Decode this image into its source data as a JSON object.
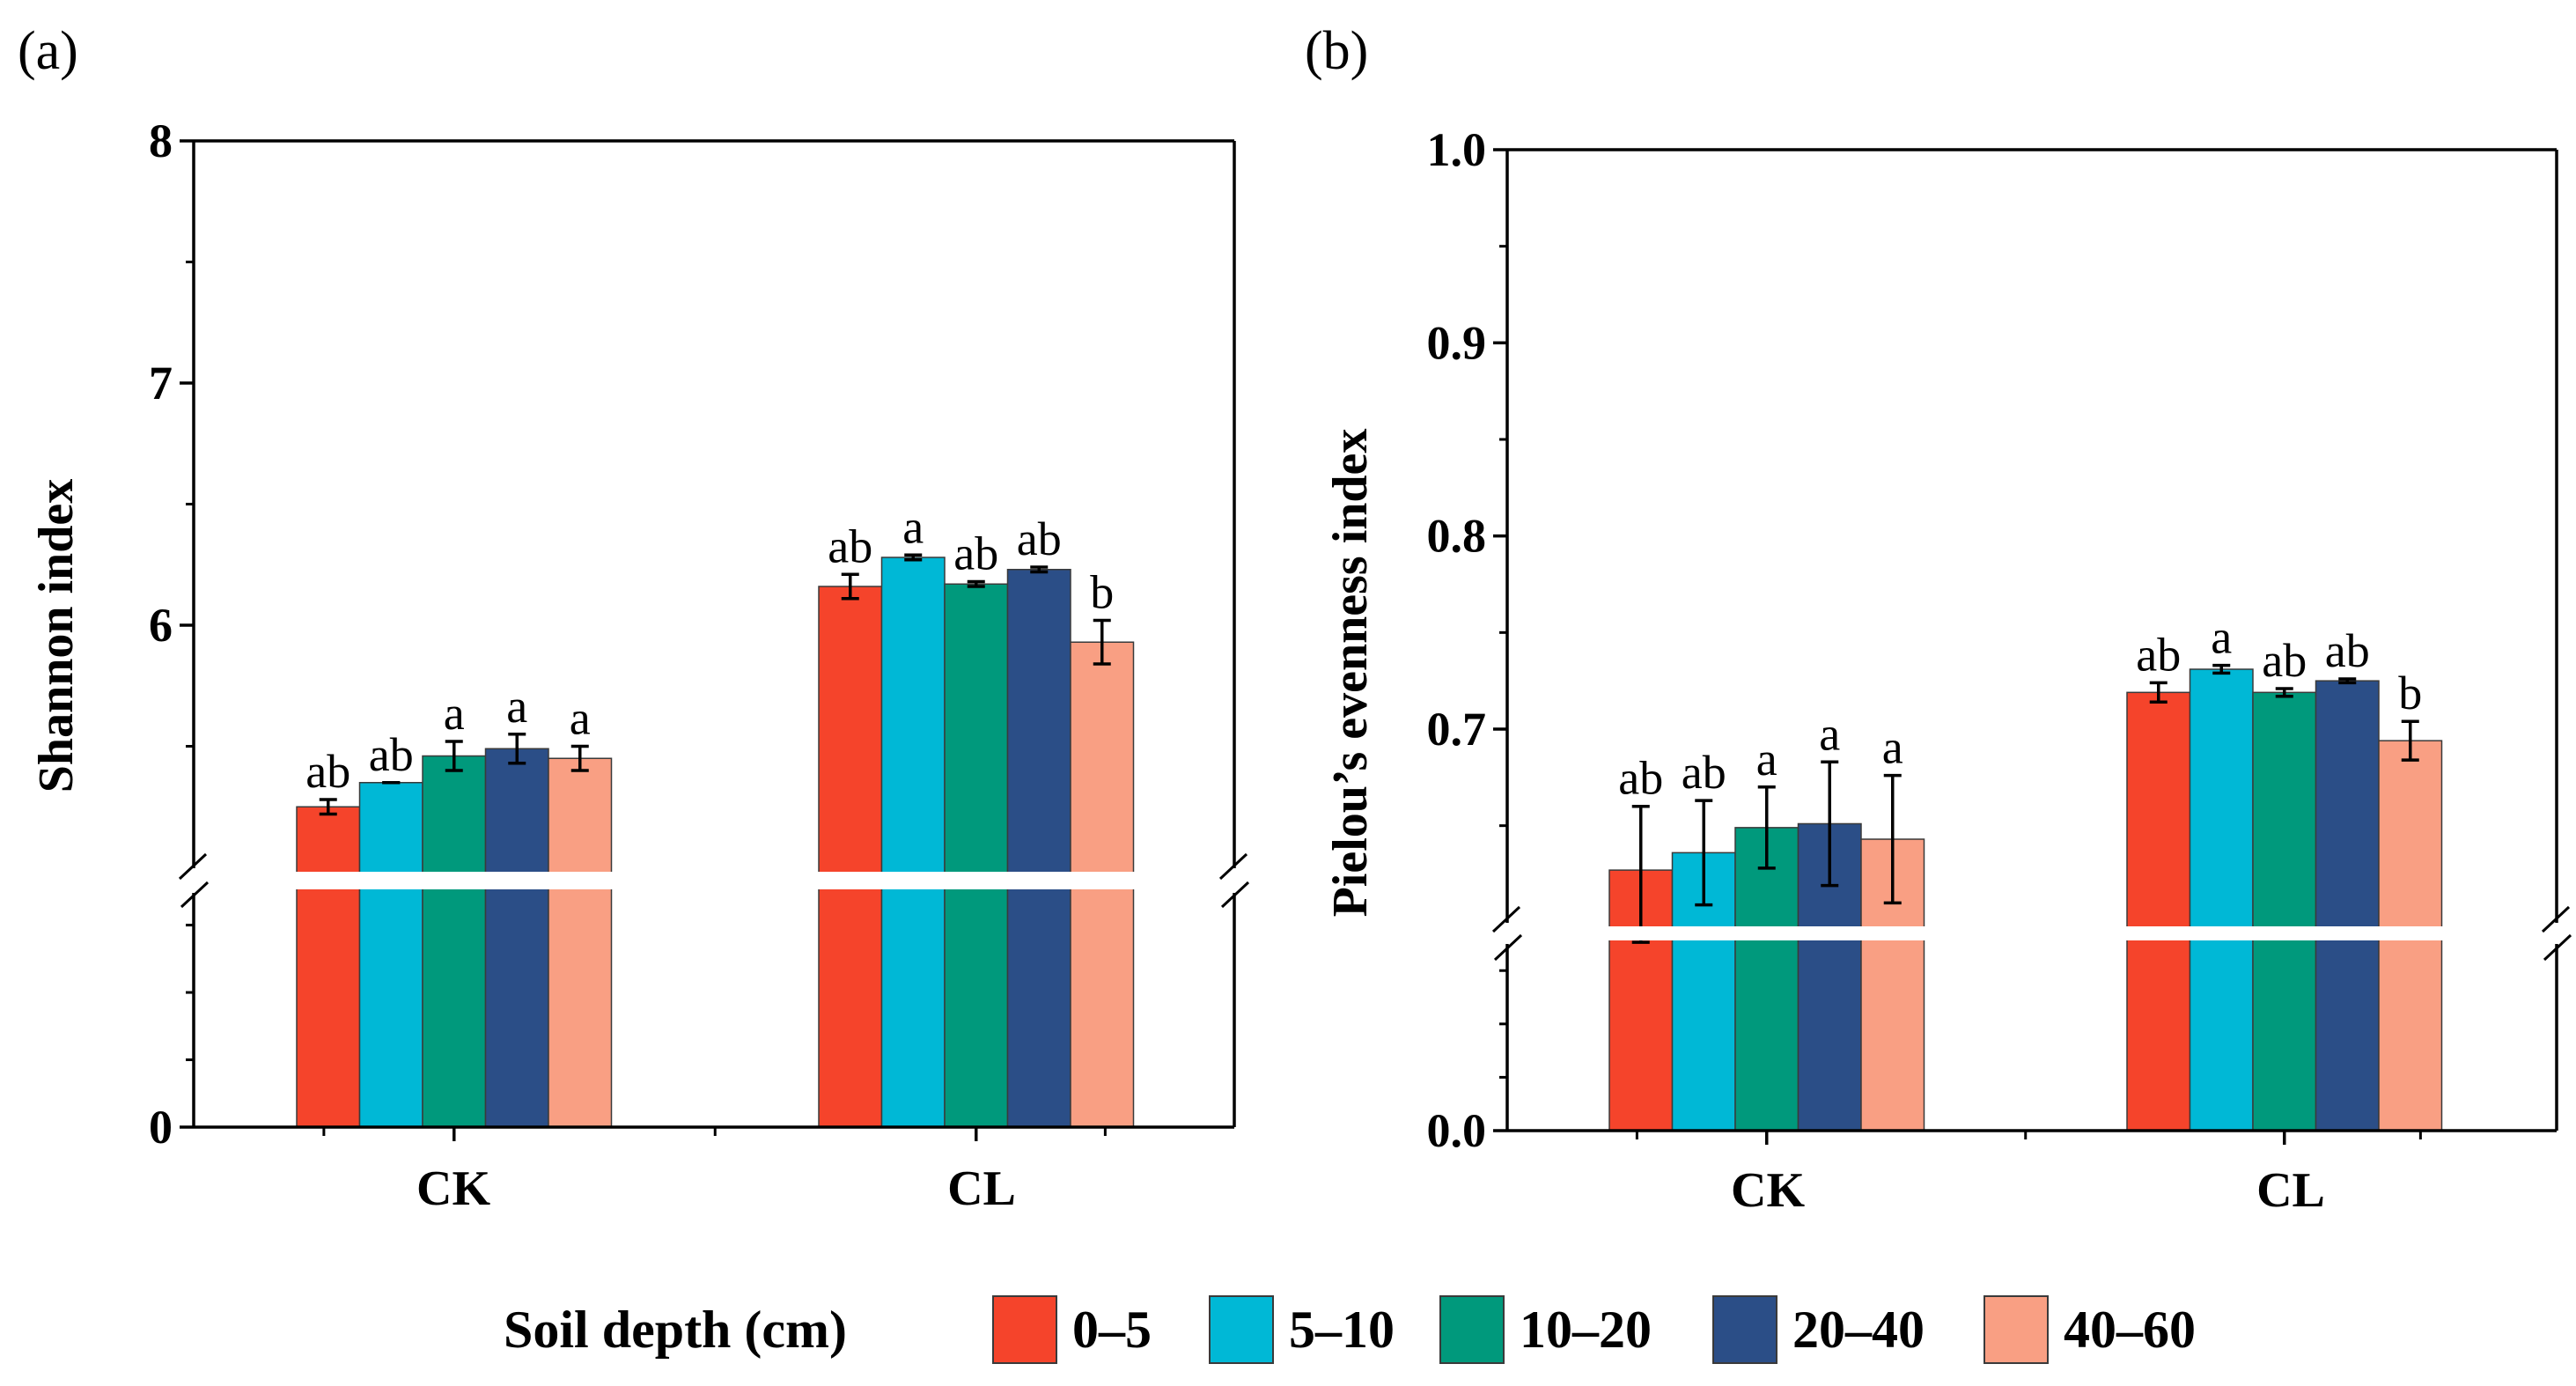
{
  "legend": {
    "title": "Soil depth (cm)",
    "entries": [
      {
        "label": "0–5",
        "color": "#f5442b"
      },
      {
        "label": "5–10",
        "color": "#00b8d6"
      },
      {
        "label": "10–20",
        "color": "#00997c"
      },
      {
        "label": "20–40",
        "color": "#2b4e87"
      },
      {
        "label": "40–60",
        "color": "#f99f83"
      }
    ]
  },
  "chart_data": [
    {
      "type": "bar",
      "panel_label": "(a)",
      "ylabel": "Shannon index",
      "categories": [
        "CK",
        "CL"
      ],
      "axis_break": true,
      "ylim_lower": [
        0,
        5
      ],
      "ylim_upper": [
        5,
        8
      ],
      "yticks": [
        {
          "value": 0,
          "label": "0"
        },
        {
          "value": 6,
          "label": "6"
        },
        {
          "value": 7,
          "label": "7"
        },
        {
          "value": 8,
          "label": "8"
        }
      ],
      "series": [
        {
          "name": "0–5",
          "values": [
            5.25,
            6.16
          ],
          "errors": [
            0.03,
            0.05
          ],
          "letters": [
            "ab",
            "ab"
          ]
        },
        {
          "name": "5–10",
          "values": [
            5.35,
            6.28
          ],
          "errors": [
            0.0,
            0.01
          ],
          "letters": [
            "ab",
            "a"
          ]
        },
        {
          "name": "10–20",
          "values": [
            5.46,
            6.17
          ],
          "errors": [
            0.06,
            0.01
          ],
          "letters": [
            "a",
            "ab"
          ]
        },
        {
          "name": "20–40",
          "values": [
            5.49,
            6.23
          ],
          "errors": [
            0.06,
            0.01
          ],
          "letters": [
            "a",
            "ab"
          ]
        },
        {
          "name": "40–60",
          "values": [
            5.45,
            5.93
          ],
          "errors": [
            0.05,
            0.09
          ],
          "letters": [
            "a",
            "b"
          ]
        }
      ]
    },
    {
      "type": "bar",
      "panel_label": "(b)",
      "ylabel": "Pielou’s evenness index",
      "categories": [
        "CK",
        "CL"
      ],
      "axis_break": true,
      "ylim_lower": [
        0,
        0.6
      ],
      "ylim_upper": [
        0.6,
        1.0
      ],
      "yticks": [
        {
          "value": 0,
          "label": "0.0"
        },
        {
          "value": 0.7,
          "label": "0.7"
        },
        {
          "value": 0.8,
          "label": "0.8"
        },
        {
          "value": 0.9,
          "label": "0.9"
        },
        {
          "value": 1.0,
          "label": "1.0"
        }
      ],
      "series": [
        {
          "name": "0–5",
          "values": [
            0.627,
            0.719
          ],
          "errors": [
            0.033,
            0.005
          ],
          "letters": [
            "ab",
            "ab"
          ]
        },
        {
          "name": "5–10",
          "values": [
            0.636,
            0.731
          ],
          "errors": [
            0.027,
            0.002
          ],
          "letters": [
            "ab",
            "a"
          ]
        },
        {
          "name": "10–20",
          "values": [
            0.649,
            0.719
          ],
          "errors": [
            0.021,
            0.002
          ],
          "letters": [
            "a",
            "ab"
          ]
        },
        {
          "name": "20–40",
          "values": [
            0.651,
            0.725
          ],
          "errors": [
            0.032,
            0.001
          ],
          "letters": [
            "a",
            "ab"
          ]
        },
        {
          "name": "40–60",
          "values": [
            0.643,
            0.694
          ],
          "errors": [
            0.033,
            0.01
          ],
          "letters": [
            "a",
            "b"
          ]
        }
      ]
    }
  ]
}
